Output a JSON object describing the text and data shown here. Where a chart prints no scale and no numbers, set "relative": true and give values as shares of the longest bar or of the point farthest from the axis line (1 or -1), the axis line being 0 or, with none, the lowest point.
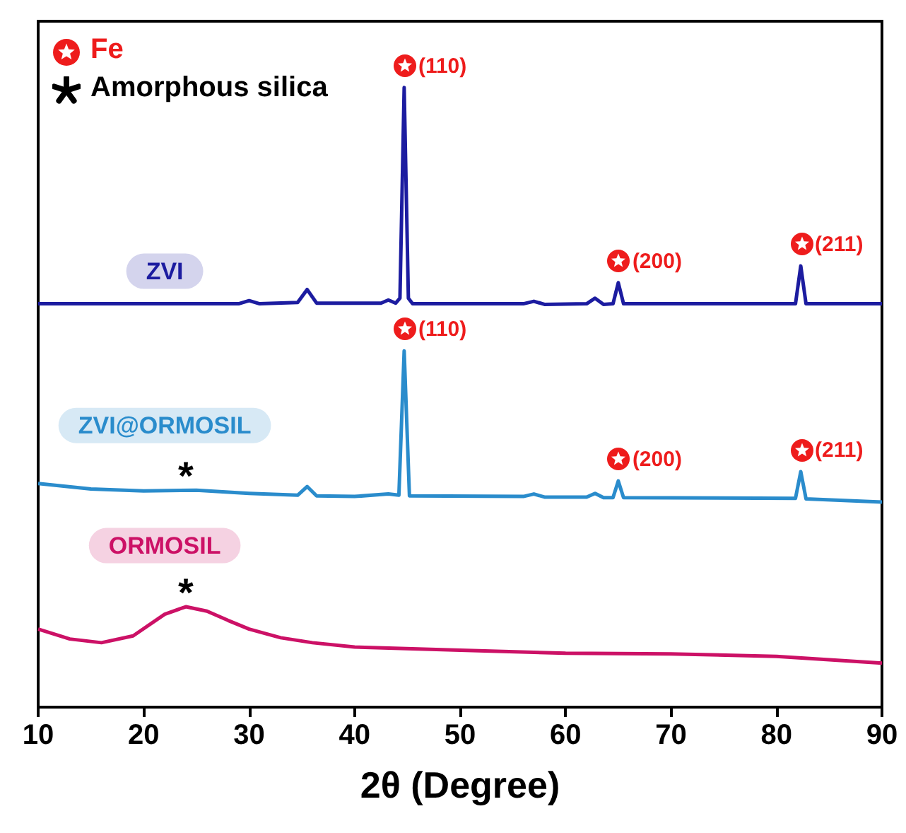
{
  "chart_data": {
    "type": "line",
    "relative": true,
    "xlabel": "2θ (Degree)",
    "xlim": [
      10,
      90
    ],
    "xticks": [
      10,
      20,
      30,
      40,
      50,
      60,
      70,
      80,
      90
    ],
    "grid": false,
    "marker": "none",
    "annotations": [
      "Fe",
      "Amorphous silica",
      {
        "text": "(110)",
        "x": 44.7,
        "y": 1.0
      },
      {
        "text": "(200)",
        "x": 65,
        "y": 0.685
      },
      {
        "text": "(211)",
        "x": 82.3,
        "y": 0.712
      },
      {
        "text": "(110)",
        "x": 44.7,
        "y": 0.575
      },
      {
        "text": "(200)",
        "x": 65,
        "y": 0.365
      },
      {
        "text": "(211)",
        "x": 82.3,
        "y": 0.38
      },
      {
        "text": "*",
        "x": 24,
        "y": 0.35
      },
      {
        "text": "*",
        "x": 24,
        "y": 0.162
      }
    ],
    "series": [
      {
        "name": "ZVI",
        "color": "#1c1ca0",
        "x": [
          10,
          20,
          29,
          30,
          31,
          34.6,
          35.5,
          36.4,
          42.5,
          43.2,
          43.9,
          44.3,
          44.7,
          45.1,
          45.5,
          56,
          57,
          58,
          62,
          62.8,
          63.6,
          64.5,
          65,
          65.5,
          81.8,
          82.3,
          82.8,
          90
        ],
        "values": [
          0.651,
          0.651,
          0.651,
          0.656,
          0.651,
          0.653,
          0.674,
          0.652,
          0.652,
          0.657,
          0.652,
          0.66,
          1.0,
          0.66,
          0.651,
          0.651,
          0.655,
          0.65,
          0.651,
          0.66,
          0.65,
          0.651,
          0.685,
          0.651,
          0.651,
          0.712,
          0.651,
          0.651
        ]
      },
      {
        "name": "ZVI@ORMOSIL",
        "color": "#2a8ccc",
        "x": [
          10,
          15,
          20,
          25,
          30,
          34.6,
          35.5,
          36.4,
          40,
          43.2,
          44.2,
          44.7,
          45.2,
          56,
          57,
          58,
          62,
          62.8,
          63.6,
          64.5,
          65,
          65.5,
          81.8,
          82.3,
          82.8,
          90
        ],
        "values": [
          0.361,
          0.352,
          0.349,
          0.35,
          0.345,
          0.342,
          0.356,
          0.341,
          0.34,
          0.344,
          0.342,
          0.575,
          0.341,
          0.34,
          0.344,
          0.339,
          0.339,
          0.345,
          0.338,
          0.338,
          0.365,
          0.338,
          0.337,
          0.38,
          0.336,
          0.331
        ]
      },
      {
        "name": "ORMOSIL",
        "color": "#cc1166",
        "x": [
          10,
          13,
          16,
          19,
          22,
          24,
          26,
          28,
          30,
          33,
          36,
          40,
          50,
          60,
          70,
          80,
          90
        ],
        "values": [
          0.126,
          0.11,
          0.104,
          0.115,
          0.15,
          0.162,
          0.155,
          0.14,
          0.126,
          0.112,
          0.104,
          0.097,
          0.092,
          0.087,
          0.086,
          0.082,
          0.071
        ]
      }
    ]
  }
}
